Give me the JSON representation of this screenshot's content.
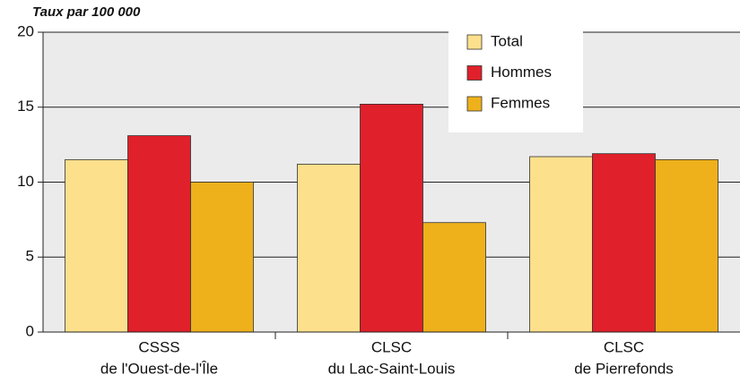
{
  "chart_data": {
    "type": "bar",
    "ylabel": "Taux par 100 000",
    "categories": [
      [
        "CSSS",
        "de l'Ouest-de-l'Île"
      ],
      [
        "CLSC",
        "du Lac-Saint-Louis"
      ],
      [
        "CLSC",
        "de Pierrefonds"
      ]
    ],
    "series": [
      {
        "name": "Total",
        "color": "#fde08c",
        "values": [
          11.5,
          11.2,
          11.7
        ]
      },
      {
        "name": "Hommes",
        "color": "#e0202a",
        "values": [
          13.1,
          15.2,
          11.9
        ]
      },
      {
        "name": "Femmes",
        "color": "#eeb11c",
        "values": [
          10.0,
          7.3,
          11.5
        ]
      }
    ],
    "ylim": [
      0,
      20
    ],
    "yticks": [
      0,
      5,
      10,
      15,
      20
    ],
    "grid": true,
    "legend": "top-right"
  }
}
